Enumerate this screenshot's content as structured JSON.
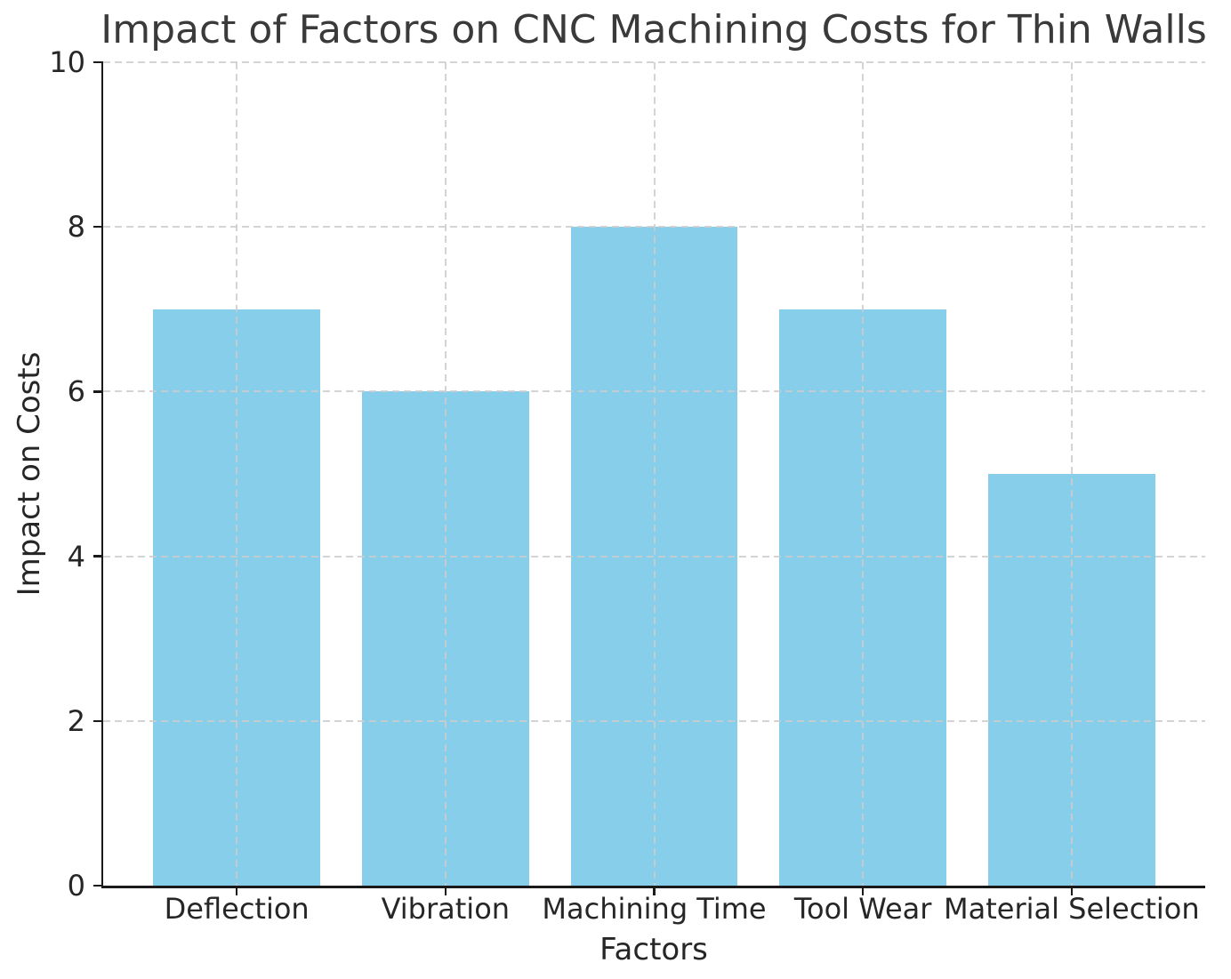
{
  "chart_data": {
    "type": "bar",
    "title": "Impact of Factors on CNC Machining Costs for Thin Walls",
    "xlabel": "Factors",
    "ylabel": "Impact on Costs",
    "categories": [
      "Deflection",
      "Vibration",
      "Machining Time",
      "Tool Wear",
      "Material Selection"
    ],
    "values": [
      7,
      6,
      8,
      7,
      5
    ],
    "ylim": [
      0,
      10
    ],
    "yticks": [
      0,
      2,
      4,
      6,
      8,
      10
    ],
    "bar_color": "#87CEEB",
    "bar_width_fraction": 0.8,
    "grid": "dashed",
    "grid_color": "#cccccc",
    "spine_color": "#1a1a1a",
    "text_color": "#262626",
    "legend": false,
    "background": "#ffffff"
  }
}
